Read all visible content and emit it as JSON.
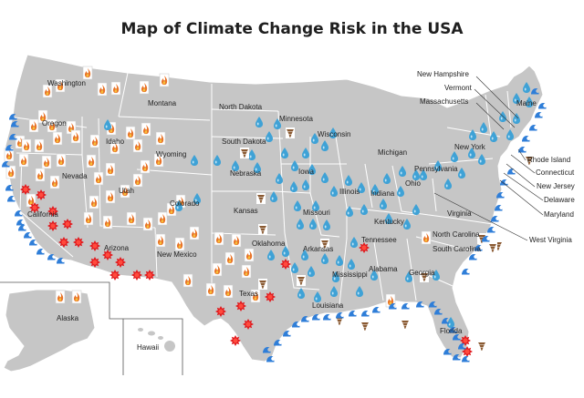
{
  "title": "Map of Climate Change Risk in the USA",
  "colors": {
    "land": "#c6c6c6",
    "border": "#ffffff",
    "fire": "#e8742a",
    "flood_drop": "#3fa2d6",
    "heat": "#e0181c",
    "sea_rise": "#2f7ed8",
    "drought": "#8a5a32"
  },
  "states": {
    "washington": "Washington",
    "oregon": "Oregon",
    "california": "California",
    "nevada": "Nevada",
    "idaho": "Idaho",
    "montana": "Montana",
    "wyoming": "Wyoming",
    "utah": "Utah",
    "arizona": "Arizona",
    "colorado": "Colorado",
    "new_mexico": "New Mexico",
    "north_dakota": "North Dakota",
    "south_dakota": "South Dakota",
    "nebraska": "Nebraska",
    "kansas": "Kansas",
    "oklahoma": "Oklahoma",
    "texas": "Texas",
    "minnesota": "Minnesota",
    "iowa": "Iowa",
    "missouri": "Missouri",
    "arkansas": "Arkansas",
    "louisiana": "Louisiana",
    "wisconsin": "Wisconsin",
    "illinois": "Illinois",
    "michigan": "Michigan",
    "indiana": "Indiana",
    "ohio": "Ohio",
    "kentucky": "Kentucky",
    "tennessee": "Tennessee",
    "mississippi": "Mississippi",
    "alabama": "Alabama",
    "georgia": "Georgia",
    "florida": "Florida",
    "south_carolina": "South Carolina",
    "north_carolina": "North Carolina",
    "virginia": "Virginia",
    "west_virginia": "West Virginia",
    "pennsylvania": "Pennsylvania",
    "new_york": "New York",
    "maine": "Maine",
    "new_hampshire": "New Hampshire",
    "vermont": "Vermont",
    "massachusetts": "Massachusetts",
    "rhode_island": "Rhode Island",
    "connecticut": "Connecticut",
    "new_jersey": "New Jersey",
    "delaware": "Delaware",
    "maryland": "Maryland",
    "alaska": "Alaska",
    "hawaii": "Hawaii"
  }
}
